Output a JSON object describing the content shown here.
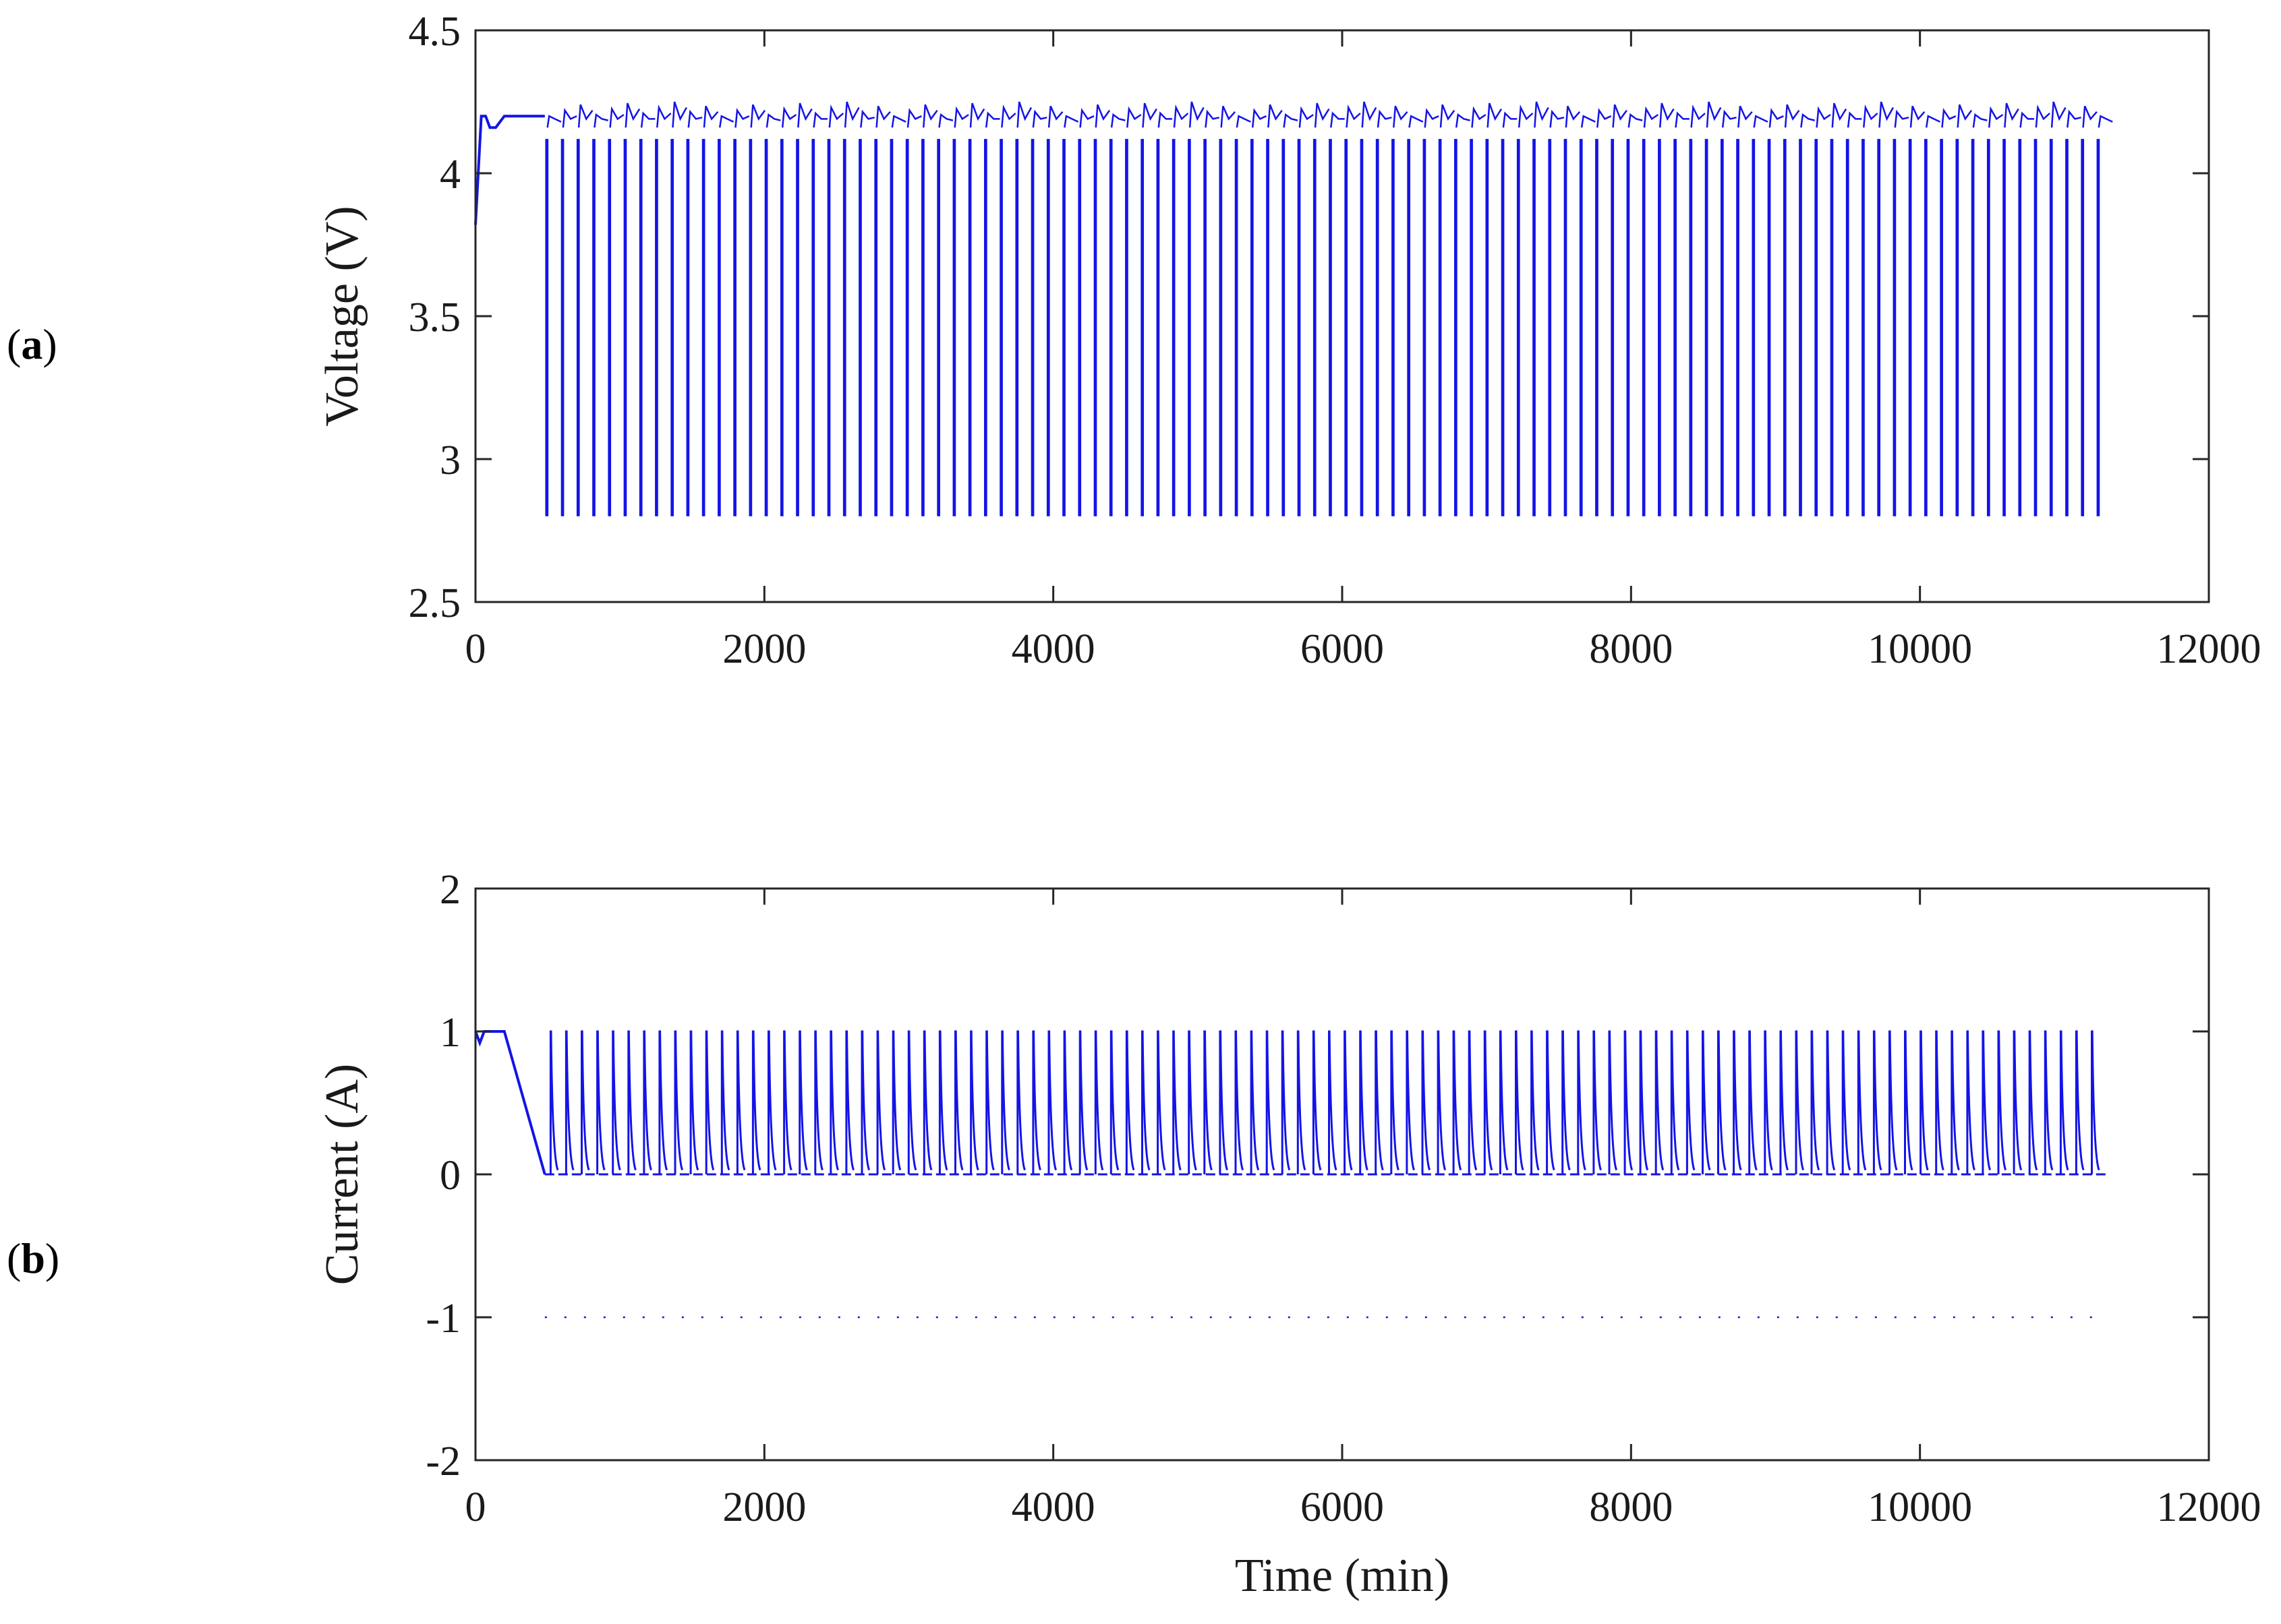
{
  "chart_data": [
    {
      "panel": "(a)",
      "type": "line",
      "xlabel": "",
      "ylabel": "Voltage (V)",
      "xlim": [
        0,
        12000
      ],
      "ylim": [
        2.5,
        4.5
      ],
      "xticks": [
        "0",
        "2000",
        "4000",
        "6000",
        "8000",
        "10000",
        "12000"
      ],
      "yticks": [
        "2.5",
        "3",
        "3.5",
        "4",
        "4.5"
      ],
      "grid": false,
      "series_color": "#1414e6",
      "series": [
        {
          "description_of_shape": "initial CC-CV charge then repeated discharge/charge cycles",
          "initial": {
            "x": [
              0,
              40,
              70,
              100,
              140,
              200,
              480
            ],
            "y": [
              3.82,
              4.2,
              4.2,
              4.16,
              4.16,
              4.2,
              4.2
            ]
          },
          "cycles": {
            "first_cycle_start": 490,
            "last_cycle_start": 11230,
            "count": 100,
            "min_voltage": 2.8,
            "rest_voltage": 4.12,
            "peak_voltage_low": 4.2,
            "peak_voltage_high": 4.25
          }
        }
      ]
    },
    {
      "panel": "(b)",
      "type": "line",
      "xlabel": "Time (min)",
      "ylabel": "Current (A)",
      "xlim": [
        0,
        12000
      ],
      "ylim": [
        -2,
        2
      ],
      "xticks": [
        "0",
        "2000",
        "4000",
        "6000",
        "8000",
        "10000",
        "12000"
      ],
      "yticks": [
        "-2",
        "-1",
        "0",
        "1",
        "2"
      ],
      "grid": false,
      "series_color": "#1414e6",
      "series": [
        {
          "initial": {
            "x": [
              0,
              30,
              60,
              90,
              200,
              480
            ],
            "y": [
              1.0,
              0.92,
              1.0,
              1.0,
              1.0,
              0.0
            ]
          },
          "cycles": {
            "first_cycle_start": 520,
            "last_cycle_start": 11190,
            "count": 100,
            "charge_current": 1.0,
            "rest_current": 0.0,
            "discharge_current": -1.0
          }
        }
      ]
    }
  ],
  "labels": {
    "panel_a": "(a)",
    "panel_b": "(b)",
    "panel_a_letter": "a",
    "panel_b_letter": "b"
  }
}
